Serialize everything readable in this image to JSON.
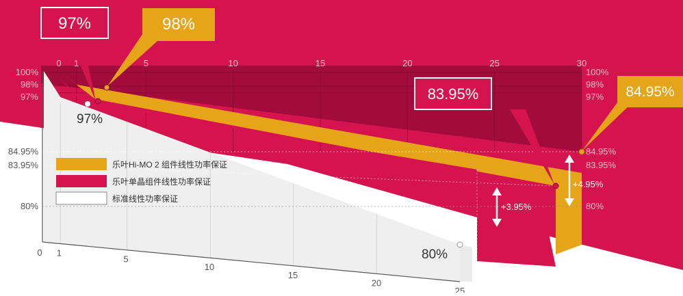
{
  "colors": {
    "crimson": "#d5134f",
    "crimson_dark": "#9f0c3a",
    "gold": "#e6a418",
    "gold_dark": "#c98c0a",
    "standard": "#efefef",
    "tick_text": "#f3c0cc",
    "tick_text_dark": "#555555"
  },
  "chart_data": [
    {
      "type": "area",
      "name": "upper-chart",
      "x_ticks": [
        0,
        1,
        5,
        10,
        15,
        20,
        25,
        30
      ],
      "x_tick_labels": [
        "0",
        "1",
        "5",
        "10",
        "15",
        "20",
        "25",
        "30"
      ],
      "y_ticks_left": [
        "100%",
        "98%",
        "97%",
        "84.95%",
        "83.95%",
        "80%"
      ],
      "y_ticks_right": [
        "100%",
        "98%",
        "97%",
        "84.95%",
        "83.95%",
        "80%"
      ],
      "xlim": [
        0,
        30
      ],
      "series": [
        {
          "name": "乐叶Hi-MO 2 组件线性功率保证",
          "x": [
            0,
            1,
            30
          ],
          "y": [
            100,
            98,
            84.95
          ],
          "color": "gold"
        },
        {
          "name": "乐叶单晶组件线性功率保证",
          "x": [
            0,
            1,
            27.5
          ],
          "y": [
            100,
            97,
            83.95
          ],
          "color": "crimson"
        }
      ],
      "annotations": {
        "callout_97": "97%",
        "callout_98": "98%",
        "callout_8395": "83.95%",
        "callout_8495": "84.95%",
        "diff_gold": "+4.95%",
        "diff_crimson": "+3.95%"
      }
    },
    {
      "type": "area",
      "name": "standard-chart",
      "x_ticks": [
        0,
        1,
        5,
        10,
        15,
        20,
        25
      ],
      "x_tick_labels": [
        "0",
        "1",
        "5",
        "10",
        "15",
        "20",
        "25"
      ],
      "xlim": [
        0,
        25
      ],
      "series": [
        {
          "name": "标准线性功率保证",
          "x": [
            0,
            1,
            25
          ],
          "y": [
            100,
            97,
            80
          ],
          "color": "standard"
        }
      ],
      "annotations": {
        "label_97": "97%",
        "label_80": "80%"
      }
    }
  ],
  "legend": {
    "items": [
      {
        "label": "乐叶Hi-MO 2 组件线性功率保证",
        "color": "gold"
      },
      {
        "label": "乐叶单晶组件线性功率保证",
        "color": "crimson"
      },
      {
        "label": "标准线性功率保证",
        "color": "standard"
      }
    ]
  }
}
